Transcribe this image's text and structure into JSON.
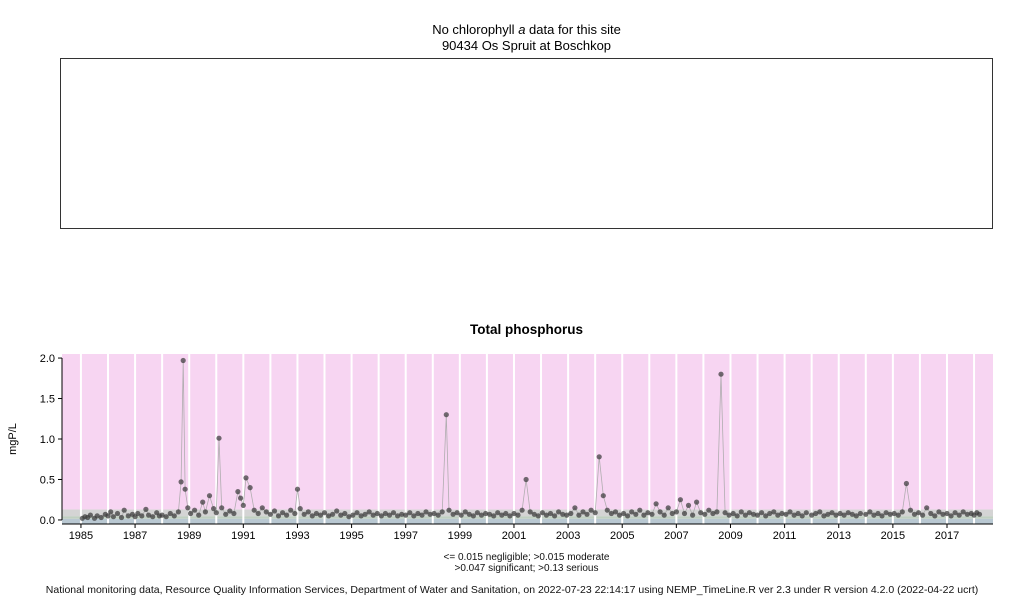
{
  "header": {
    "no_data_pre": "No chlorophyll ",
    "no_data_em": "a",
    "no_data_post": " data for this site",
    "site_line": "90434 Os Spruit at Boschkop"
  },
  "footer_text": "National monitoring data, Resource Quality Information Services, Department of Water and Sanitation, on 2022-07-23 22:14:17 using NEMP_TimeLine.R ver 2.3 under R version 4.2.0 (2022-04-22 ucrt)",
  "chart_data": {
    "type": "scatter",
    "title": "Total phosphorus",
    "ylabel": "mgP/L",
    "xlim": [
      1984.3,
      2018.7
    ],
    "ylim": [
      -0.05,
      2.05
    ],
    "yticks": [
      0.0,
      0.5,
      1.0,
      1.5,
      2.0
    ],
    "xticks": [
      1985,
      1987,
      1989,
      1991,
      1993,
      1995,
      1997,
      1999,
      2001,
      2003,
      2005,
      2007,
      2009,
      2011,
      2013,
      2015,
      2017
    ],
    "grid": "white vertical line each year",
    "legend_line1": "<= 0.015 negligible; >0.015 moderate",
    "legend_line2": ">0.047 significant; >0.13 serious",
    "colors": {
      "band_negligible": "#b9c8d2",
      "band_moderate": "#c0cfc1",
      "band_significant": "#d4d4d4",
      "band_serious": "#f7d5f2",
      "gridline": "#ffffff",
      "point": "#3b3b3b",
      "connector": "#a8a8a8",
      "axis": "#000000"
    },
    "bands": [
      {
        "name": "negligible",
        "from": -0.05,
        "to": 0.015
      },
      {
        "name": "moderate",
        "from": 0.015,
        "to": 0.047
      },
      {
        "name": "significant",
        "from": 0.047,
        "to": 0.13
      },
      {
        "name": "serious",
        "from": 0.13,
        "to": 2.05
      }
    ],
    "points": [
      [
        1985.05,
        0.02
      ],
      [
        1985.15,
        0.04
      ],
      [
        1985.25,
        0.03
      ],
      [
        1985.35,
        0.06
      ],
      [
        1985.5,
        0.02
      ],
      [
        1985.6,
        0.05
      ],
      [
        1985.75,
        0.03
      ],
      [
        1985.9,
        0.07
      ],
      [
        1986.0,
        0.05
      ],
      [
        1986.1,
        0.1
      ],
      [
        1986.2,
        0.04
      ],
      [
        1986.35,
        0.08
      ],
      [
        1986.5,
        0.03
      ],
      [
        1986.6,
        0.12
      ],
      [
        1986.75,
        0.05
      ],
      [
        1986.9,
        0.07
      ],
      [
        1987.0,
        0.04
      ],
      [
        1987.1,
        0.08
      ],
      [
        1987.25,
        0.05
      ],
      [
        1987.4,
        0.13
      ],
      [
        1987.5,
        0.06
      ],
      [
        1987.65,
        0.04
      ],
      [
        1987.8,
        0.09
      ],
      [
        1987.9,
        0.05
      ],
      [
        1988.0,
        0.06
      ],
      [
        1988.15,
        0.04
      ],
      [
        1988.3,
        0.08
      ],
      [
        1988.45,
        0.05
      ],
      [
        1988.6,
        0.1
      ],
      [
        1988.7,
        0.47
      ],
      [
        1988.78,
        1.97
      ],
      [
        1988.85,
        0.38
      ],
      [
        1988.95,
        0.15
      ],
      [
        1989.05,
        0.08
      ],
      [
        1989.2,
        0.12
      ],
      [
        1989.35,
        0.06
      ],
      [
        1989.5,
        0.22
      ],
      [
        1989.6,
        0.1
      ],
      [
        1989.75,
        0.3
      ],
      [
        1989.9,
        0.14
      ],
      [
        1990.0,
        0.09
      ],
      [
        1990.1,
        1.01
      ],
      [
        1990.2,
        0.15
      ],
      [
        1990.35,
        0.07
      ],
      [
        1990.5,
        0.11
      ],
      [
        1990.65,
        0.08
      ],
      [
        1990.8,
        0.35
      ],
      [
        1990.9,
        0.27
      ],
      [
        1991.0,
        0.18
      ],
      [
        1991.1,
        0.52
      ],
      [
        1991.25,
        0.4
      ],
      [
        1991.4,
        0.12
      ],
      [
        1991.55,
        0.08
      ],
      [
        1991.7,
        0.15
      ],
      [
        1991.85,
        0.1
      ],
      [
        1992.0,
        0.07
      ],
      [
        1992.15,
        0.11
      ],
      [
        1992.3,
        0.05
      ],
      [
        1992.45,
        0.09
      ],
      [
        1992.6,
        0.06
      ],
      [
        1992.75,
        0.12
      ],
      [
        1992.9,
        0.08
      ],
      [
        1993.0,
        0.38
      ],
      [
        1993.1,
        0.14
      ],
      [
        1993.25,
        0.07
      ],
      [
        1993.4,
        0.1
      ],
      [
        1993.55,
        0.05
      ],
      [
        1993.7,
        0.08
      ],
      [
        1993.85,
        0.06
      ],
      [
        1994.0,
        0.09
      ],
      [
        1994.15,
        0.05
      ],
      [
        1994.3,
        0.07
      ],
      [
        1994.45,
        0.11
      ],
      [
        1994.6,
        0.06
      ],
      [
        1994.75,
        0.08
      ],
      [
        1994.9,
        0.04
      ],
      [
        1995.05,
        0.06
      ],
      [
        1995.2,
        0.09
      ],
      [
        1995.35,
        0.05
      ],
      [
        1995.5,
        0.07
      ],
      [
        1995.65,
        0.1
      ],
      [
        1995.8,
        0.06
      ],
      [
        1995.95,
        0.08
      ],
      [
        1996.1,
        0.05
      ],
      [
        1996.25,
        0.08
      ],
      [
        1996.4,
        0.06
      ],
      [
        1996.55,
        0.09
      ],
      [
        1996.7,
        0.05
      ],
      [
        1996.85,
        0.07
      ],
      [
        1997.0,
        0.06
      ],
      [
        1997.15,
        0.09
      ],
      [
        1997.3,
        0.05
      ],
      [
        1997.45,
        0.08
      ],
      [
        1997.6,
        0.06
      ],
      [
        1997.75,
        0.1
      ],
      [
        1997.9,
        0.07
      ],
      [
        1998.05,
        0.08
      ],
      [
        1998.2,
        0.06
      ],
      [
        1998.35,
        0.1
      ],
      [
        1998.5,
        1.3
      ],
      [
        1998.6,
        0.12
      ],
      [
        1998.75,
        0.07
      ],
      [
        1998.9,
        0.09
      ],
      [
        1999.05,
        0.06
      ],
      [
        1999.2,
        0.1
      ],
      [
        1999.35,
        0.07
      ],
      [
        1999.5,
        0.05
      ],
      [
        1999.65,
        0.09
      ],
      [
        1999.8,
        0.06
      ],
      [
        1999.95,
        0.08
      ],
      [
        2000.1,
        0.07
      ],
      [
        2000.25,
        0.05
      ],
      [
        2000.4,
        0.09
      ],
      [
        2000.55,
        0.06
      ],
      [
        2000.7,
        0.08
      ],
      [
        2000.85,
        0.05
      ],
      [
        2001.0,
        0.08
      ],
      [
        2001.15,
        0.06
      ],
      [
        2001.3,
        0.12
      ],
      [
        2001.45,
        0.5
      ],
      [
        2001.6,
        0.1
      ],
      [
        2001.75,
        0.07
      ],
      [
        2001.9,
        0.05
      ],
      [
        2002.05,
        0.09
      ],
      [
        2002.2,
        0.06
      ],
      [
        2002.35,
        0.08
      ],
      [
        2002.5,
        0.05
      ],
      [
        2002.65,
        0.1
      ],
      [
        2002.8,
        0.07
      ],
      [
        2002.95,
        0.06
      ],
      [
        2003.1,
        0.08
      ],
      [
        2003.25,
        0.15
      ],
      [
        2003.4,
        0.06
      ],
      [
        2003.55,
        0.1
      ],
      [
        2003.7,
        0.07
      ],
      [
        2003.85,
        0.12
      ],
      [
        2004.0,
        0.09
      ],
      [
        2004.15,
        0.78
      ],
      [
        2004.3,
        0.3
      ],
      [
        2004.45,
        0.12
      ],
      [
        2004.6,
        0.08
      ],
      [
        2004.75,
        0.1
      ],
      [
        2004.9,
        0.06
      ],
      [
        2005.05,
        0.08
      ],
      [
        2005.2,
        0.05
      ],
      [
        2005.35,
        0.1
      ],
      [
        2005.5,
        0.07
      ],
      [
        2005.65,
        0.12
      ],
      [
        2005.8,
        0.06
      ],
      [
        2005.95,
        0.09
      ],
      [
        2006.1,
        0.07
      ],
      [
        2006.25,
        0.2
      ],
      [
        2006.4,
        0.1
      ],
      [
        2006.55,
        0.06
      ],
      [
        2006.7,
        0.15
      ],
      [
        2006.85,
        0.08
      ],
      [
        2007.0,
        0.1
      ],
      [
        2007.15,
        0.25
      ],
      [
        2007.3,
        0.08
      ],
      [
        2007.45,
        0.18
      ],
      [
        2007.6,
        0.06
      ],
      [
        2007.75,
        0.22
      ],
      [
        2007.9,
        0.09
      ],
      [
        2008.05,
        0.07
      ],
      [
        2008.2,
        0.12
      ],
      [
        2008.35,
        0.08
      ],
      [
        2008.5,
        0.1
      ],
      [
        2008.65,
        1.8
      ],
      [
        2008.8,
        0.09
      ],
      [
        2008.95,
        0.06
      ],
      [
        2009.1,
        0.08
      ],
      [
        2009.25,
        0.05
      ],
      [
        2009.4,
        0.1
      ],
      [
        2009.55,
        0.06
      ],
      [
        2009.7,
        0.09
      ],
      [
        2009.85,
        0.07
      ],
      [
        2010.0,
        0.06
      ],
      [
        2010.15,
        0.09
      ],
      [
        2010.3,
        0.05
      ],
      [
        2010.45,
        0.08
      ],
      [
        2010.6,
        0.1
      ],
      [
        2010.75,
        0.06
      ],
      [
        2010.9,
        0.08
      ],
      [
        2011.05,
        0.07
      ],
      [
        2011.2,
        0.1
      ],
      [
        2011.35,
        0.06
      ],
      [
        2011.5,
        0.08
      ],
      [
        2011.65,
        0.05
      ],
      [
        2011.8,
        0.09
      ],
      [
        2012.0,
        0.06
      ],
      [
        2012.15,
        0.08
      ],
      [
        2012.3,
        0.1
      ],
      [
        2012.45,
        0.05
      ],
      [
        2012.6,
        0.07
      ],
      [
        2012.75,
        0.09
      ],
      [
        2012.9,
        0.06
      ],
      [
        2013.05,
        0.08
      ],
      [
        2013.2,
        0.06
      ],
      [
        2013.35,
        0.09
      ],
      [
        2013.5,
        0.07
      ],
      [
        2013.65,
        0.05
      ],
      [
        2013.8,
        0.08
      ],
      [
        2014.0,
        0.07
      ],
      [
        2014.15,
        0.1
      ],
      [
        2014.3,
        0.06
      ],
      [
        2014.45,
        0.08
      ],
      [
        2014.6,
        0.05
      ],
      [
        2014.75,
        0.09
      ],
      [
        2014.9,
        0.07
      ],
      [
        2015.05,
        0.08
      ],
      [
        2015.2,
        0.06
      ],
      [
        2015.35,
        0.1
      ],
      [
        2015.5,
        0.45
      ],
      [
        2015.65,
        0.12
      ],
      [
        2015.8,
        0.07
      ],
      [
        2015.95,
        0.09
      ],
      [
        2016.1,
        0.06
      ],
      [
        2016.25,
        0.15
      ],
      [
        2016.4,
        0.08
      ],
      [
        2016.55,
        0.05
      ],
      [
        2016.7,
        0.1
      ],
      [
        2016.85,
        0.07
      ],
      [
        2017.0,
        0.08
      ],
      [
        2017.15,
        0.05
      ],
      [
        2017.3,
        0.09
      ],
      [
        2017.45,
        0.06
      ],
      [
        2017.6,
        0.1
      ],
      [
        2017.75,
        0.07
      ],
      [
        2017.9,
        0.08
      ],
      [
        2018.0,
        0.06
      ],
      [
        2018.1,
        0.09
      ],
      [
        2018.2,
        0.07
      ]
    ]
  }
}
